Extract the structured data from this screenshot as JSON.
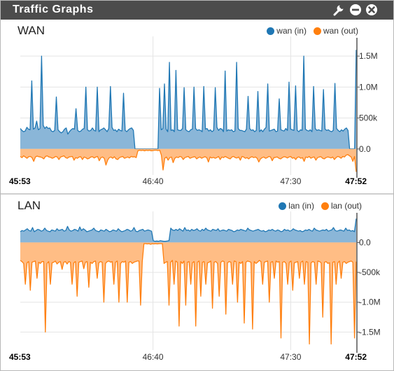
{
  "header": {
    "title": "Traffic Graphs"
  },
  "colors": {
    "in": "#1f77b4",
    "out": "#ff7f0e",
    "in_fill": "#8ab6d8",
    "out_fill": "#ffbd85",
    "header": "#4c4c4c"
  },
  "icons": [
    "wrench-icon",
    "minimize-icon",
    "close-icon"
  ],
  "chart_data": [
    {
      "type": "area",
      "title": "WAN",
      "interface": "wan",
      "series": [
        {
          "name": "wan (in)",
          "values": [
            330,
            300,
            280,
            290,
            350,
            320,
            310,
            1100,
            320,
            340,
            450,
            310,
            330,
            1500,
            380,
            330,
            360,
            330,
            340,
            290,
            280,
            300,
            840,
            310,
            280,
            260,
            280,
            320,
            340,
            240,
            280,
            310,
            330,
            320,
            650,
            300,
            280,
            290,
            320,
            330,
            1000,
            310,
            290,
            300,
            340,
            300,
            290,
            1000,
            280,
            310,
            320,
            340,
            310,
            280,
            330,
            1010,
            350,
            300,
            310,
            280,
            320,
            300,
            290,
            900,
            300,
            280,
            310,
            330,
            340,
            300,
            0,
            0,
            0,
            0,
            0,
            0,
            0,
            0,
            0,
            0,
            0,
            0,
            0,
            0,
            0,
            980,
            310,
            330,
            1050,
            320,
            280,
            1400,
            300,
            310,
            280,
            1270,
            310,
            300,
            300,
            330,
            990,
            310,
            290,
            280,
            310,
            320,
            1000,
            330,
            300,
            310,
            300,
            280,
            1010,
            320,
            330,
            290,
            310,
            280,
            300,
            990,
            350,
            300,
            330,
            320,
            280,
            1260,
            290,
            310,
            300,
            310,
            280,
            290,
            1400,
            330,
            300,
            300,
            290,
            280,
            320,
            850,
            330,
            300,
            310,
            280,
            300,
            930,
            280,
            310,
            280,
            320,
            350,
            1050,
            290,
            300,
            310,
            320,
            280,
            290,
            810,
            310,
            300,
            290,
            330,
            300,
            1080,
            320,
            310,
            300,
            1020,
            300,
            280,
            310,
            300,
            1500,
            320,
            300,
            290,
            310,
            280,
            1010,
            330,
            300,
            310,
            300,
            290,
            960,
            320,
            300,
            310,
            290,
            280,
            300,
            1060,
            330,
            300,
            280,
            310,
            290,
            320,
            340,
            300,
            0,
            0,
            0,
            0,
            1600
          ]
        },
        {
          "name": "wan (out)",
          "values": [
            -120,
            -140,
            -110,
            -130,
            -150,
            -125,
            -120,
            -140,
            -200,
            -130,
            -115,
            -125,
            -130,
            -140,
            -160,
            -120,
            -110,
            -130,
            -135,
            -150,
            -140,
            -120,
            -130,
            -170,
            -130,
            -120,
            -110,
            -140,
            -150,
            -130,
            -125,
            -120,
            -180,
            -140,
            -150,
            -130,
            -125,
            -170,
            -130,
            -140,
            -160,
            -150,
            -130,
            -125,
            -145,
            -130,
            -120,
            -190,
            -140,
            -130,
            -150,
            -260,
            -180,
            -140,
            -130,
            -150,
            -125,
            -160,
            -170,
            -140,
            -130,
            -120,
            -150,
            -140,
            -130,
            -145,
            -120,
            -130,
            -125,
            -140,
            -30,
            -20,
            -25,
            -20,
            -30,
            -20,
            -25,
            -20,
            -30,
            -25,
            -20,
            -20,
            -25,
            -20,
            -100,
            -340,
            -150,
            -130,
            -180,
            -140,
            -130,
            -220,
            -150,
            -130,
            -140,
            -120,
            -130,
            -170,
            -140,
            -130,
            -120,
            -150,
            -140,
            -130,
            -125,
            -160,
            -140,
            -130,
            -150,
            -135,
            -125,
            -140,
            -210,
            -130,
            -145,
            -135,
            -150,
            -140,
            -120,
            -170,
            -130,
            -140,
            -120,
            -135,
            -150,
            -160,
            -130,
            -120,
            -140,
            -145,
            -130,
            -180,
            -120,
            -130,
            -150,
            -140,
            -160,
            -135,
            -125,
            -140,
            -130,
            -150,
            -210,
            -160,
            -140,
            -130,
            -150,
            -140,
            -120,
            -130,
            -190,
            -140,
            -135,
            -130,
            -150,
            -160,
            -140,
            -125,
            -130,
            -145,
            -130,
            -120,
            -150,
            -140,
            -170,
            -135,
            -130,
            -150,
            -140,
            -200,
            -130,
            -140,
            -120,
            -150,
            -135,
            -130,
            -180,
            -140,
            -130,
            -125,
            -150,
            -160,
            -140,
            -130,
            -135,
            -145,
            -130,
            -170,
            -140,
            -120,
            -130,
            -150,
            -120,
            -130,
            -100,
            -90,
            -110,
            -130,
            -200,
            -120,
            -370
          ]
        }
      ],
      "y_ticks": [
        {
          "v": 1500,
          "label": "1.5M"
        },
        {
          "v": 1000,
          "label": "1.0M"
        },
        {
          "v": 500,
          "label": "500k"
        },
        {
          "v": 0,
          "label": "0.0"
        }
      ],
      "ylim": [
        -420,
        1750
      ],
      "x_ticks": [
        {
          "f": 0.0,
          "label": "45:53",
          "bold": true
        },
        {
          "f": 0.395,
          "label": "46:40",
          "bold": false
        },
        {
          "f": 0.805,
          "label": "47:30",
          "bold": false
        },
        {
          "f": 1.0,
          "label": "47:52",
          "bold": true
        }
      ],
      "legend_position": "top-right"
    },
    {
      "type": "area",
      "title": "LAN",
      "interface": "lan",
      "series": [
        {
          "name": "lan (in)",
          "values": [
            180,
            200,
            190,
            210,
            230,
            200,
            190,
            250,
            180,
            200,
            220,
            210,
            190,
            200,
            240,
            200,
            190,
            180,
            210,
            200,
            190,
            230,
            200,
            210,
            220,
            190,
            200,
            270,
            210,
            190,
            200,
            220,
            210,
            190,
            260,
            200,
            230,
            210,
            180,
            190,
            200,
            210,
            240,
            200,
            190,
            180,
            210,
            200,
            190,
            220,
            200,
            180,
            190,
            210,
            200,
            190,
            230,
            200,
            180,
            190,
            200,
            220,
            210,
            190,
            200,
            250,
            190,
            180,
            200,
            210,
            220,
            190,
            200,
            210,
            200,
            190,
            30,
            20,
            25,
            20,
            30,
            25,
            20,
            20,
            25,
            30,
            240,
            210,
            200,
            220,
            200,
            230,
            210,
            190,
            250,
            200,
            210,
            190,
            220,
            200,
            210,
            230,
            200,
            190,
            220,
            200,
            240,
            210,
            200,
            190,
            220,
            210,
            200,
            230,
            190,
            200,
            210,
            200,
            190,
            220,
            210,
            200,
            180,
            190,
            210,
            200,
            220,
            210,
            200,
            190,
            240,
            210,
            200,
            190,
            200,
            210,
            220,
            200,
            190,
            200,
            180,
            190,
            210,
            200,
            220,
            200,
            190,
            210,
            200,
            180,
            190,
            220,
            200,
            210,
            190,
            200,
            230,
            210,
            200,
            190,
            200,
            180,
            190,
            210,
            200,
            220,
            200,
            190,
            240,
            210,
            200,
            190,
            200,
            210,
            200,
            220,
            190,
            200,
            210,
            250,
            200,
            190,
            200,
            210,
            200,
            190,
            240,
            200,
            210,
            190,
            200,
            180,
            400
          ]
        },
        {
          "name": "lan (out)",
          "values": [
            -300,
            -320,
            -350,
            -700,
            -340,
            -320,
            -800,
            -330,
            -320,
            -310,
            -600,
            -330,
            -350,
            -320,
            -320,
            -1500,
            -350,
            -320,
            -700,
            -340,
            -330,
            -310,
            -360,
            -330,
            -320,
            -450,
            -330,
            -320,
            -360,
            -320,
            -330,
            -700,
            -340,
            -320,
            -900,
            -330,
            -320,
            -310,
            -440,
            -330,
            -320,
            -750,
            -330,
            -350,
            -320,
            -310,
            -600,
            -340,
            -320,
            -330,
            -1000,
            -350,
            -320,
            -310,
            -330,
            -320,
            -700,
            -330,
            -310,
            -1000,
            -350,
            -320,
            -330,
            -310,
            -1000,
            -330,
            -320,
            -350,
            -330,
            -320,
            -310,
            -310,
            -1050,
            -320,
            -20,
            -20,
            -25,
            -20,
            -30,
            -20,
            -25,
            -20,
            -25,
            -20,
            -20,
            -20,
            -350,
            -330,
            -320,
            -1050,
            -330,
            -300,
            -700,
            -310,
            -330,
            -1400,
            -320,
            -350,
            -310,
            -1050,
            -330,
            -320,
            -700,
            -340,
            -320,
            -1400,
            -330,
            -310,
            -900,
            -330,
            -320,
            -700,
            -340,
            -330,
            -310,
            -1100,
            -330,
            -320,
            -350,
            -900,
            -330,
            -310,
            -320,
            -1200,
            -340,
            -320,
            -330,
            -700,
            -310,
            -320,
            -1000,
            -330,
            -350,
            -320,
            -1350,
            -330,
            -310,
            -320,
            -330,
            -1450,
            -320,
            -350,
            -330,
            -300,
            -320,
            -700,
            -330,
            -320,
            -310,
            -1000,
            -330,
            -320,
            -600,
            -310,
            -330,
            -320,
            -1600,
            -330,
            -320,
            -350,
            -700,
            -330,
            -310,
            -800,
            -340,
            -330,
            -320,
            -600,
            -330,
            -310,
            -700,
            -320,
            -330,
            -1700,
            -340,
            -320,
            -330,
            -700,
            -310,
            -320,
            -340,
            -1250,
            -330,
            -320,
            -350,
            -340,
            -1700,
            -330,
            -320,
            -700,
            -340,
            -310,
            -600,
            -330,
            -320,
            -350,
            -330,
            -320,
            -310,
            -330,
            -1600,
            -320
          ]
        }
      ],
      "y_ticks": [
        {
          "v": 0,
          "label": "0.0"
        },
        {
          "v": -500,
          "label": "-500k"
        },
        {
          "v": -1000,
          "label": "-1.0M"
        },
        {
          "v": -1500,
          "label": "-1.5M"
        }
      ],
      "ylim": [
        -1800,
        450
      ],
      "x_ticks": [
        {
          "f": 0.0,
          "label": "45:53",
          "bold": true
        },
        {
          "f": 0.395,
          "label": "46:40",
          "bold": false
        },
        {
          "f": 0.805,
          "label": "47:30",
          "bold": false
        },
        {
          "f": 1.0,
          "label": "47:52",
          "bold": true
        }
      ],
      "legend_position": "top-right"
    }
  ]
}
